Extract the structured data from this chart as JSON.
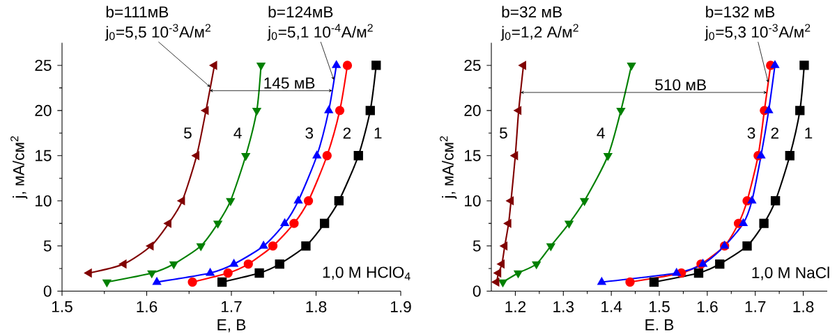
{
  "chart_data": [
    {
      "type": "line",
      "xlabel": "E, В",
      "ylabel": "j, мА/см$^{2}$",
      "xlim": [
        1.5,
        1.9
      ],
      "ylim": [
        0,
        27.5
      ],
      "xticks": [
        1.5,
        1.6,
        1.7,
        1.8,
        1.9
      ],
      "yticks": [
        0,
        5,
        10,
        15,
        20,
        25
      ],
      "series": [
        {
          "name": "1",
          "color": "#000000",
          "marker": "square",
          "x": [
            1.689,
            1.733,
            1.757,
            1.788,
            1.81,
            1.827,
            1.85,
            1.864,
            1.871
          ],
          "values": [
            1,
            2,
            3,
            5,
            7.5,
            10,
            15,
            20,
            25
          ]
        },
        {
          "name": "2",
          "color": "#ff0000",
          "marker": "circle",
          "x": [
            1.654,
            1.696,
            1.72,
            1.749,
            1.774,
            1.791,
            1.813,
            1.828,
            1.837
          ],
          "values": [
            1,
            2,
            3,
            5,
            7.5,
            10,
            15,
            20,
            25
          ]
        },
        {
          "name": "3",
          "color": "#0000ff",
          "marker": "triangle",
          "x": [
            1.612,
            1.675,
            1.703,
            1.738,
            1.763,
            1.779,
            1.801,
            1.815,
            1.824
          ],
          "values": [
            1,
            2,
            3,
            5,
            7.5,
            10,
            15,
            20,
            25
          ]
        },
        {
          "name": "4",
          "color": "#008000",
          "marker": "triangle-down",
          "x": [
            1.553,
            1.606,
            1.632,
            1.664,
            1.684,
            1.699,
            1.717,
            1.73,
            1.735
          ],
          "values": [
            1,
            2,
            3,
            5,
            7.5,
            10,
            15,
            20,
            25
          ]
        },
        {
          "name": "5",
          "color": "#800000",
          "marker": "triangle-left",
          "x": [
            1.532,
            1.573,
            1.605,
            1.626,
            1.642,
            1.659,
            1.67,
            1.68
          ],
          "values": [
            2,
            3,
            5,
            7.5,
            10,
            15,
            20,
            25
          ]
        }
      ],
      "annotations": [
        "b=111мВ",
        {
          "text": "j$_{0}$=5,5 10$^{-3}$А/м$^{2}$",
          "x": 1.675,
          "y": 22.6
        },
        "b=124мВ",
        {
          "text": "j$_{0}$=5,1 10$^{-4}$А/м$^{2}$",
          "x": 1.821,
          "y": 23.4
        },
        {
          "text": "145 мВ",
          "x": 1.819,
          "y": 22.2
        },
        "1,0 M HClO$_{4}$"
      ]
    },
    {
      "type": "line",
      "xlabel": "E. В",
      "ylabel": "j, мА/см$^{2}$",
      "xlim": [
        1.15,
        1.85
      ],
      "ylim": [
        0,
        27.5
      ],
      "xticks": [
        1.2,
        1.3,
        1.4,
        1.5,
        1.6,
        1.7,
        1.8
      ],
      "yticks": [
        0,
        5,
        10,
        15,
        20,
        25
      ],
      "series": [
        {
          "name": "1",
          "color": "#000000",
          "marker": "square",
          "x": [
            1.489,
            1.582,
            1.626,
            1.683,
            1.718,
            1.742,
            1.772,
            1.793,
            1.802
          ],
          "values": [
            1,
            2,
            3,
            5,
            7.5,
            10,
            15,
            20,
            25
          ]
        },
        {
          "name": "2",
          "color": "#ff0000",
          "marker": "circle",
          "x": [
            1.439,
            1.546,
            1.587,
            1.636,
            1.665,
            1.683,
            1.706,
            1.719,
            1.732
          ],
          "values": [
            1,
            2,
            3,
            5,
            7.5,
            10,
            15,
            20,
            25
          ]
        },
        {
          "name": "3",
          "color": "#0000ff",
          "marker": "triangle",
          "x": [
            1.38,
            1.536,
            1.591,
            1.636,
            1.675,
            1.693,
            1.712,
            1.728,
            1.741
          ],
          "values": [
            1,
            2,
            3,
            5,
            7.5,
            10,
            15,
            20,
            25
          ]
        },
        {
          "name": "4",
          "color": "#008000",
          "marker": "triangle-down",
          "x": [
            1.174,
            1.206,
            1.244,
            1.274,
            1.312,
            1.344,
            1.393,
            1.42,
            1.442
          ],
          "values": [
            1,
            2,
            3,
            5,
            7.5,
            10,
            15,
            20,
            25
          ]
        },
        {
          "name": "5",
          "color": "#800000",
          "marker": "triangle-left",
          "x": [
            1.161,
            1.165,
            1.172,
            1.178,
            1.186,
            1.191,
            1.2,
            1.207,
            1.217
          ],
          "values": [
            1,
            2,
            3,
            5,
            7.5,
            10,
            15,
            20,
            25
          ]
        }
      ],
      "annotations": [
        "b=32 мВ",
        "j$_{0}$=1,2 А/м$^{2}$",
        "b=132 мВ",
        {
          "text": "j$_{0}$=5,3 10$^{-3}$А/м$^{2}$",
          "x": 1.727,
          "y": 23.1
        },
        "510 мВ",
        "1,0 M NaCl"
      ]
    }
  ]
}
